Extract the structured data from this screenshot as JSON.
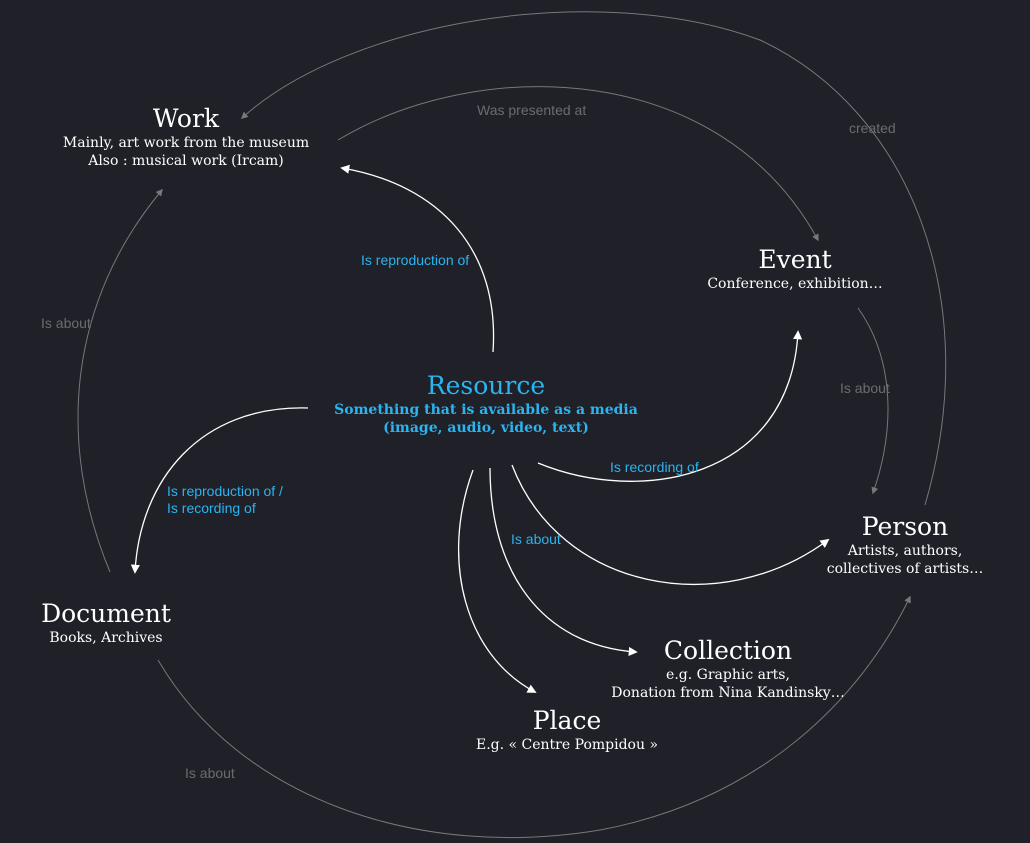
{
  "colors": {
    "background": "#1f2028",
    "primary_edge": "#ffffff",
    "secondary_edge": "#77787c",
    "resource_text": "#2ab4f0",
    "primary_label": "#2ab4f0",
    "secondary_label": "#6b6c70"
  },
  "nodes": {
    "work": {
      "title": "Work",
      "desc_line1": "Mainly, art work from the museum",
      "desc_line2": "Also : musical work (Ircam)"
    },
    "event": {
      "title": "Event",
      "desc_line1": "Conference, exhibition…"
    },
    "resource": {
      "title": "Resource",
      "desc_line1": "Something that is available as a media",
      "desc_line2": "(image, audio, video, text)"
    },
    "person": {
      "title": "Person",
      "desc_line1": "Artists, authors,",
      "desc_line2": "collectives of artists…"
    },
    "document": {
      "title": "Document",
      "desc_line1": "Books, Archives"
    },
    "collection": {
      "title": "Collection",
      "desc_line1": "e.g. Graphic arts,",
      "desc_line2": "Donation from Nina Kandinsky…"
    },
    "place": {
      "title": "Place",
      "desc_line1": "E.g. « Centre Pompidou »"
    }
  },
  "edge_labels": {
    "work_event": "Was presented at",
    "person_work": "created",
    "document_work": "Is about",
    "event_person": "Is about",
    "document_person": "Is about",
    "resource_work": "Is reproduction of",
    "resource_document_line1": "Is reproduction of /",
    "resource_document_line2": "Is recording of",
    "resource_event": "Is recording of",
    "resource_about": "Is about"
  }
}
